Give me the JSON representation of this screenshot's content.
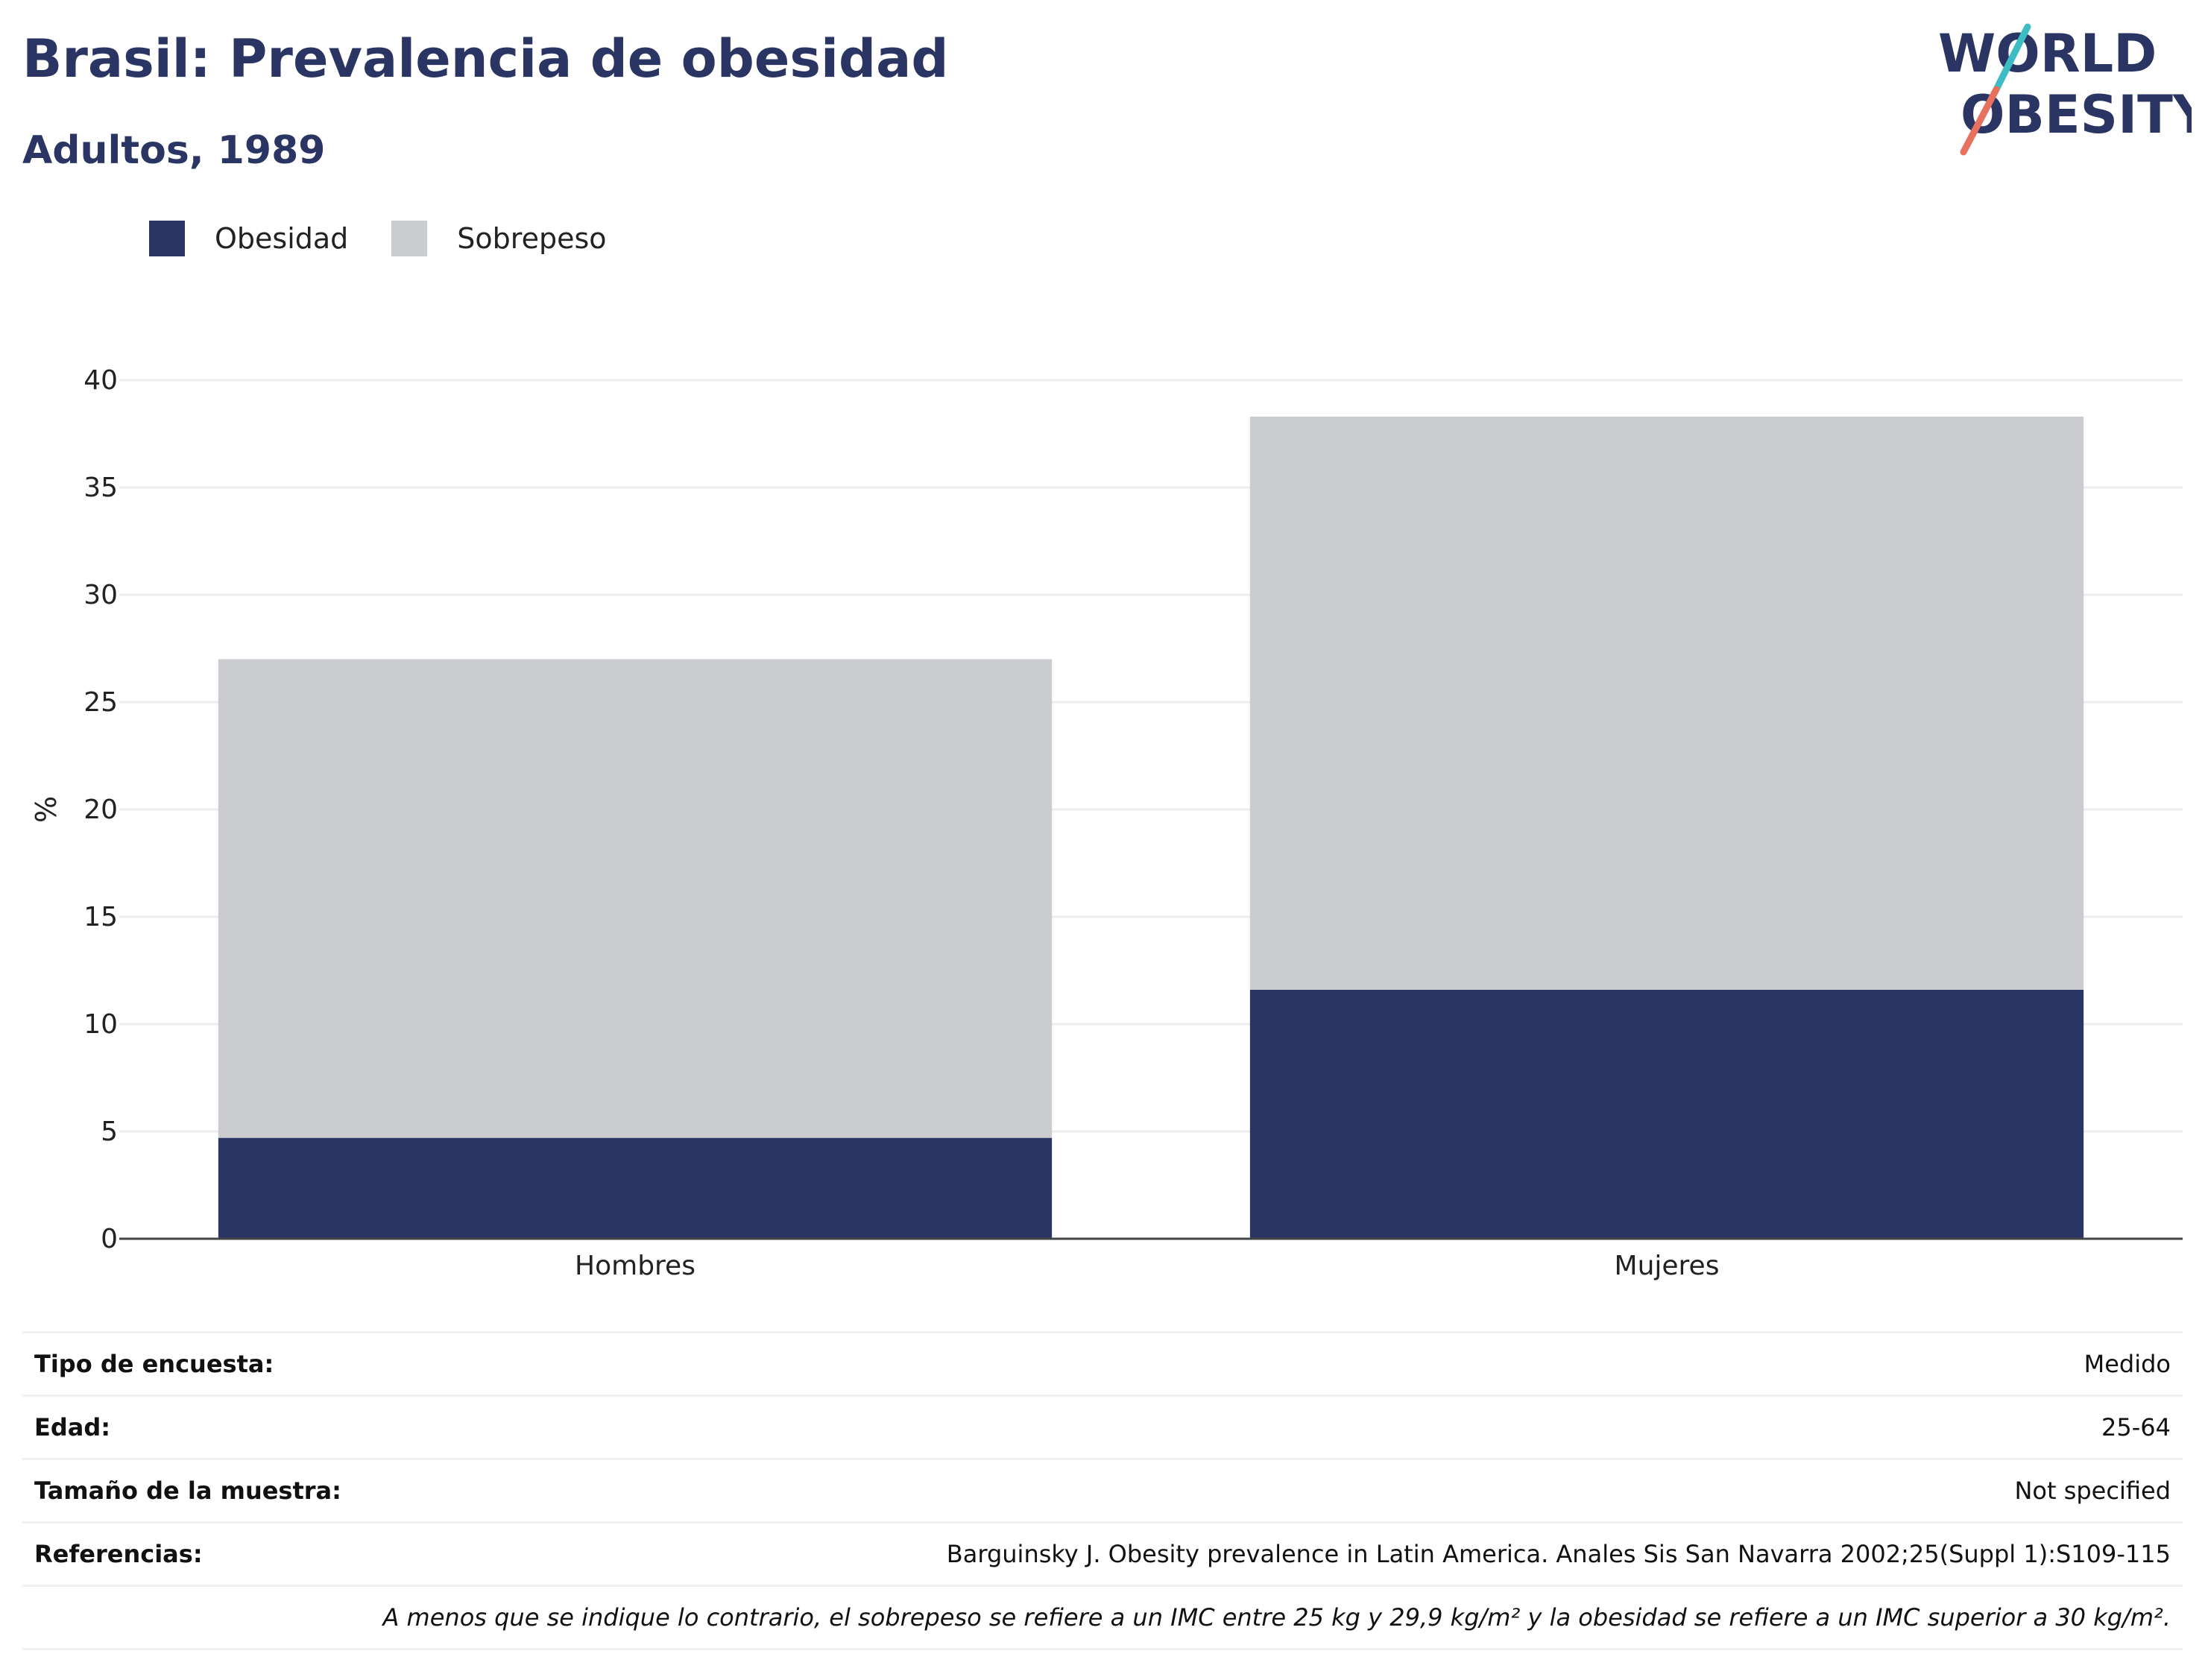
{
  "header": {
    "title": "Brasil: Prevalencia de obesidad",
    "subtitle": "Adultos, 1989"
  },
  "logo": {
    "line1": "WORLD",
    "line2": "OBESITY",
    "colors": {
      "text": "#2a3563",
      "slash_top": "#3dbcc4",
      "slash_bottom": "#e8705e"
    }
  },
  "legend": [
    {
      "label": "Obesidad",
      "color": "#2a3563"
    },
    {
      "label": "Sobrepeso",
      "color": "#cacccf"
    }
  ],
  "chart_data": {
    "type": "bar",
    "stacked": true,
    "categories": [
      "Hombres",
      "Mujeres"
    ],
    "series": [
      {
        "name": "Obesidad",
        "values": [
          4.7,
          11.6
        ],
        "color": "#2a3563"
      },
      {
        "name": "Sobrepeso",
        "values": [
          22.3,
          26.7
        ],
        "color": "#cacccf"
      }
    ],
    "ylabel": "%",
    "ylim": [
      0,
      40
    ],
    "yticks": [
      0,
      5,
      10,
      15,
      20,
      25,
      30,
      35,
      40
    ],
    "grid": true,
    "legend_position": "top-left"
  },
  "info": {
    "rows": [
      {
        "label": "Tipo de encuesta:",
        "value": "Medido"
      },
      {
        "label": "Edad:",
        "value": "25-64"
      },
      {
        "label": "Tamaño de la muestra:",
        "value": "Not specified"
      },
      {
        "label": "Referencias:",
        "value": "Barguinsky J. Obesity prevalence in Latin America. Anales Sis San Navarra 2002;25(Suppl 1):S109-115"
      }
    ],
    "note": "A menos que se indique lo contrario, el sobrepeso se refiere a un IMC entre 25 kg y 29,9 kg/m² y la obesidad se refiere a un IMC superior a 30 kg/m²."
  }
}
